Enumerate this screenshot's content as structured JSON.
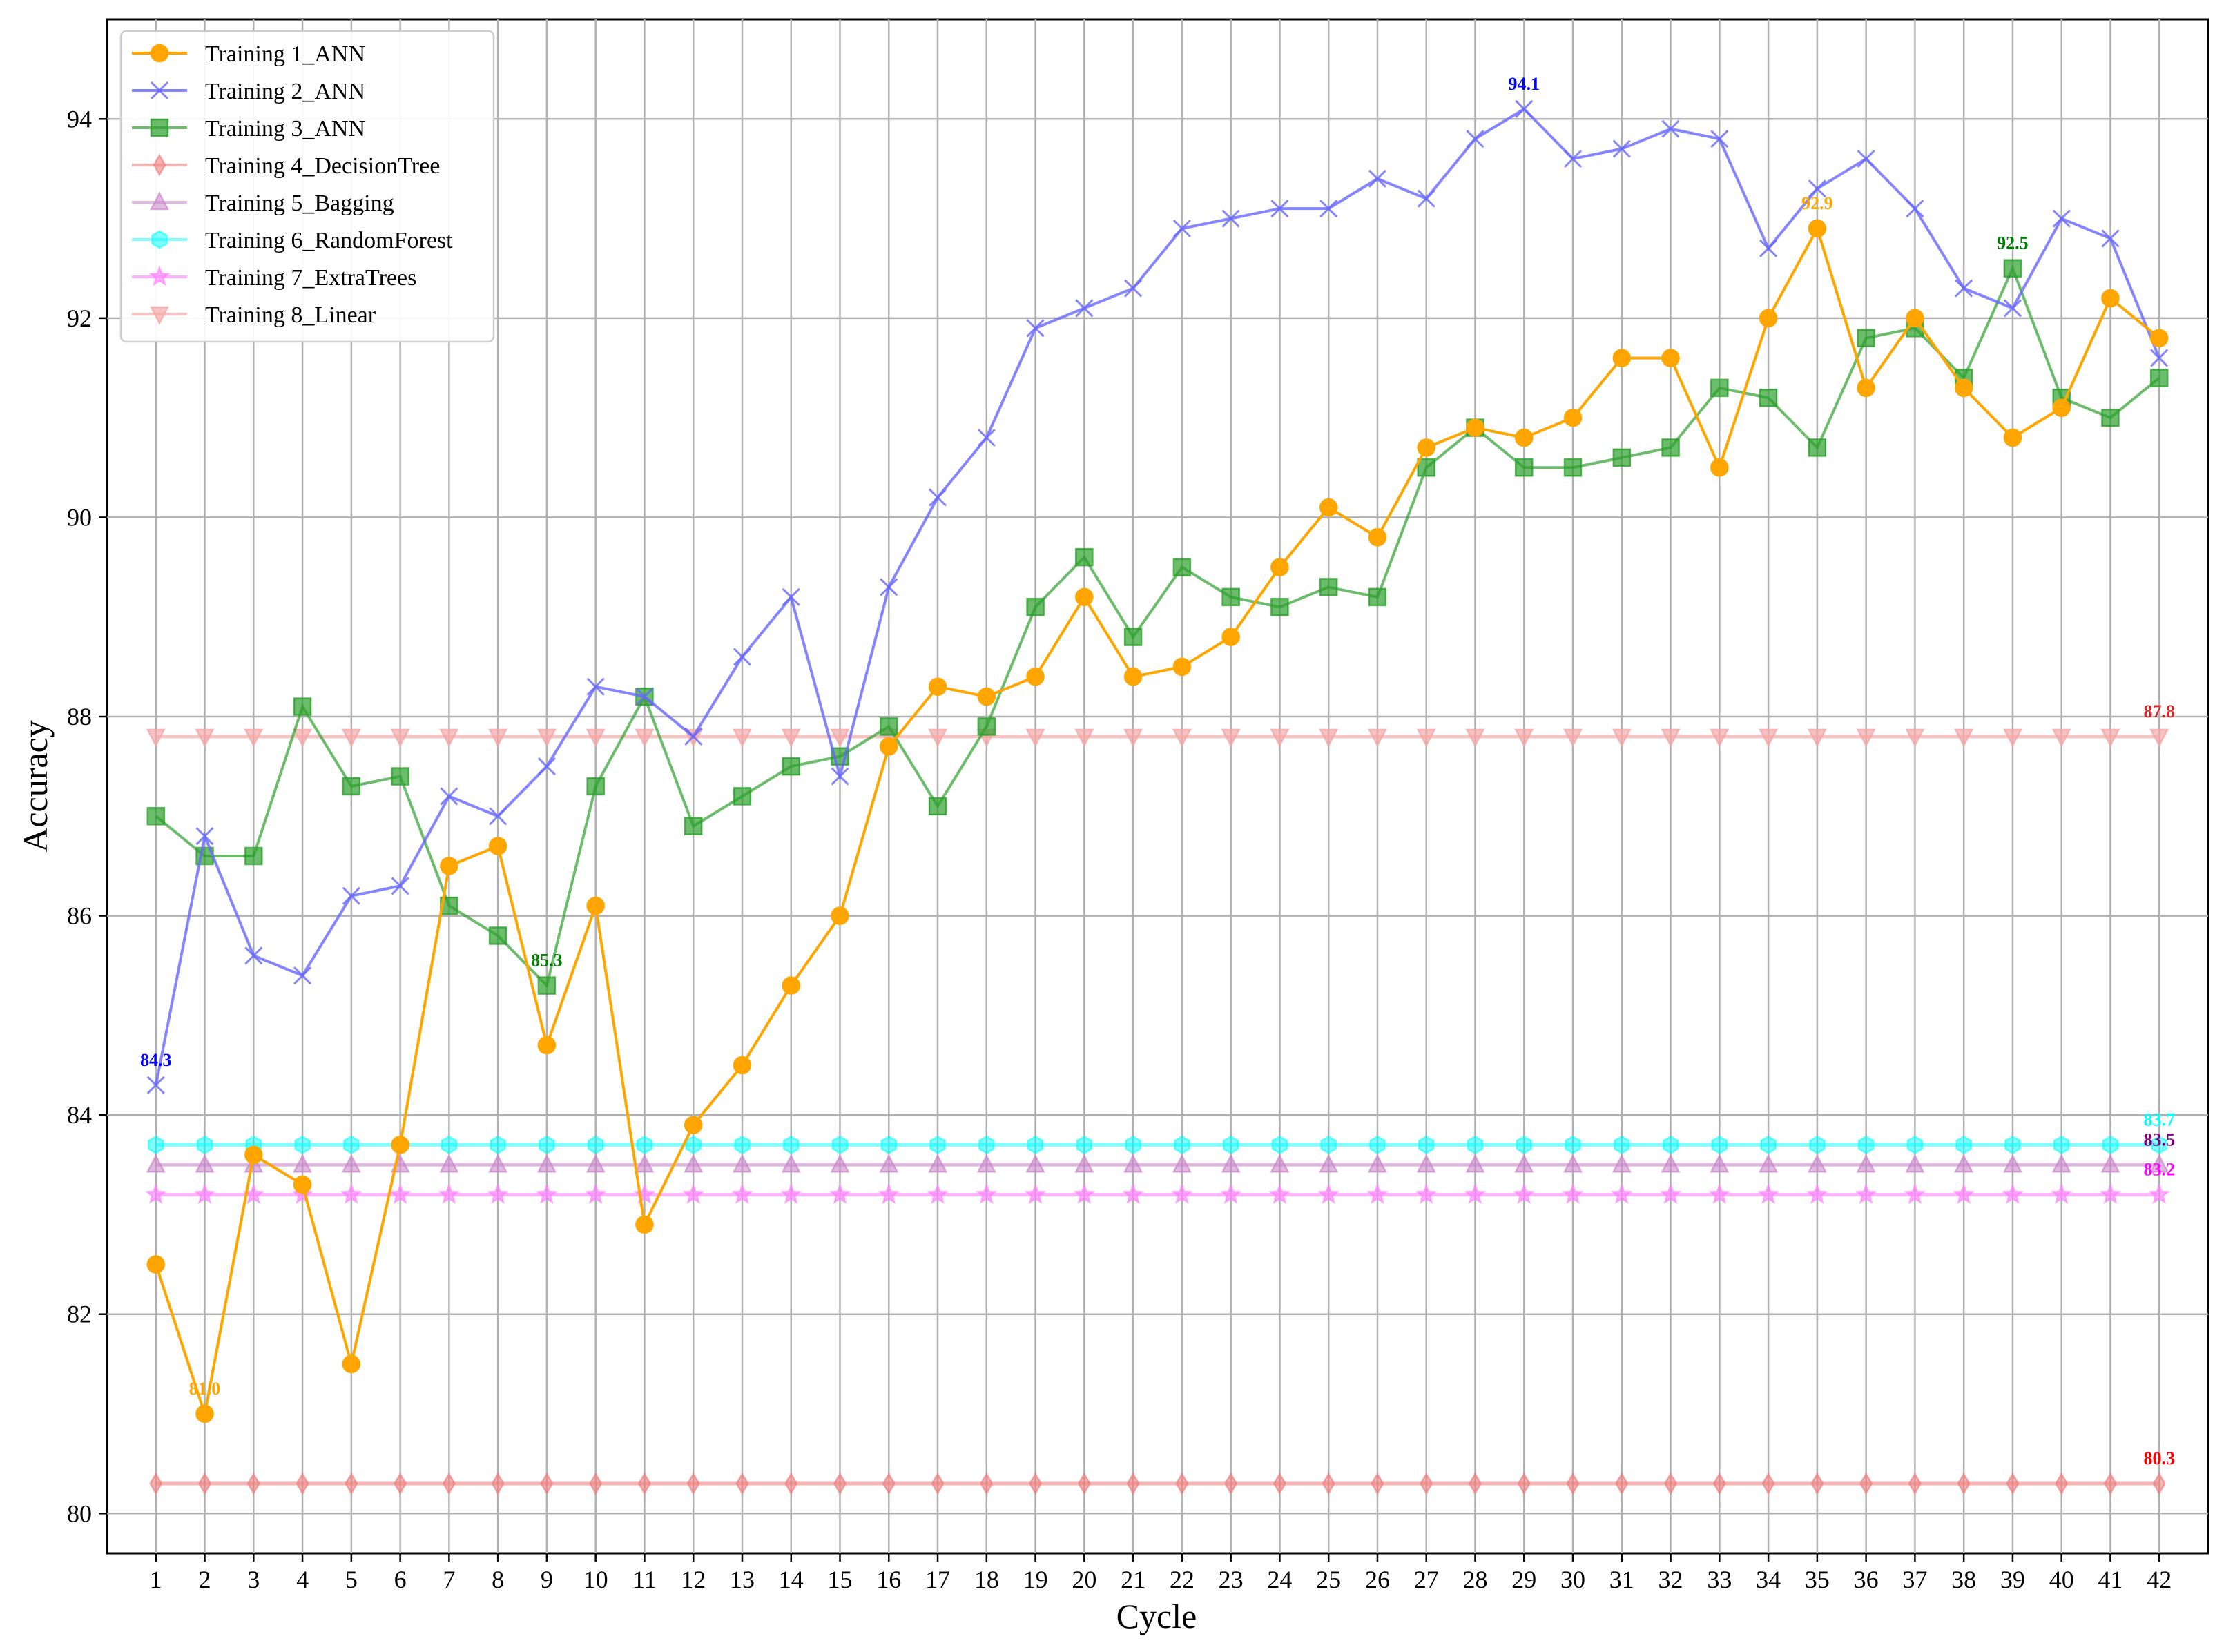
{
  "chart_data": {
    "type": "line",
    "title": "",
    "xlabel": "Cycle",
    "ylabel": "Accuracy",
    "x": [
      1,
      2,
      3,
      4,
      5,
      6,
      7,
      8,
      9,
      10,
      11,
      12,
      13,
      14,
      15,
      16,
      17,
      18,
      19,
      20,
      21,
      22,
      23,
      24,
      25,
      26,
      27,
      28,
      29,
      30,
      31,
      32,
      33,
      34,
      35,
      36,
      37,
      38,
      39,
      40,
      41,
      42
    ],
    "xlim": [
      0,
      43
    ],
    "ylim": [
      79.6,
      95.0
    ],
    "yticks": [
      80,
      82,
      84,
      86,
      88,
      90,
      92,
      94
    ],
    "grid": true,
    "legend_position": "top-left",
    "series": [
      {
        "name": "Training 1_ANN",
        "color": "#ffa500",
        "marker": "circle",
        "alpha": 1.0,
        "values": [
          82.5,
          81.0,
          83.6,
          83.3,
          81.5,
          83.7,
          86.5,
          86.7,
          84.7,
          86.1,
          82.9,
          83.9,
          84.5,
          85.3,
          86.0,
          87.7,
          88.3,
          88.2,
          88.4,
          89.2,
          88.4,
          88.5,
          88.8,
          89.5,
          90.1,
          89.8,
          90.7,
          90.9,
          90.8,
          91.0,
          91.6,
          91.6,
          90.5,
          92.0,
          92.9,
          91.3,
          92.0,
          91.3,
          90.8,
          91.1,
          92.2,
          91.8
        ]
      },
      {
        "name": "Training 2_ANN",
        "color": "#6666ff",
        "marker": "x",
        "alpha": 0.8,
        "values": [
          84.3,
          86.8,
          85.6,
          85.4,
          86.2,
          86.3,
          87.2,
          87.0,
          87.5,
          88.3,
          88.2,
          87.8,
          88.6,
          89.2,
          87.4,
          89.3,
          90.2,
          90.8,
          91.9,
          92.1,
          92.3,
          92.9,
          93.0,
          93.1,
          93.1,
          93.4,
          93.2,
          93.8,
          94.1,
          93.6,
          93.7,
          93.9,
          93.8,
          92.7,
          93.3,
          93.6,
          93.1,
          92.3,
          92.1,
          93.0,
          92.8,
          91.6
        ]
      },
      {
        "name": "Training 3_ANN",
        "color": "#2ca02c",
        "marker": "square",
        "alpha": 0.7,
        "values": [
          87.0,
          86.6,
          86.6,
          88.1,
          87.3,
          87.4,
          86.1,
          85.8,
          85.3,
          87.3,
          88.2,
          86.9,
          87.2,
          87.5,
          87.6,
          87.9,
          87.1,
          87.9,
          89.1,
          89.6,
          88.8,
          89.5,
          89.2,
          89.1,
          89.3,
          89.2,
          90.5,
          90.9,
          90.5,
          90.5,
          90.6,
          90.7,
          91.3,
          91.2,
          90.7,
          91.8,
          91.9,
          91.4,
          92.5,
          91.2,
          91.0,
          91.4
        ]
      },
      {
        "name": "Training 4_DecisionTree",
        "color": "#f08080",
        "marker": "diamond",
        "alpha": 0.6,
        "constant": 80.3
      },
      {
        "name": "Training 5_Bagging",
        "color": "#cc88cc",
        "marker": "triangle-up",
        "alpha": 0.6,
        "constant": 83.5
      },
      {
        "name": "Training 6_RandomForest",
        "color": "#00ffff",
        "marker": "hexagon",
        "alpha": 0.5,
        "constant": 83.7
      },
      {
        "name": "Training 7_ExtraTrees",
        "color": "#ff80ff",
        "marker": "star",
        "alpha": 0.6,
        "constant": 83.2
      },
      {
        "name": "Training 8_Linear",
        "color": "#f4a8a8",
        "marker": "triangle-down",
        "alpha": 0.7,
        "constant": 87.8
      }
    ],
    "annotations": [
      {
        "text": "84.3",
        "x": 1,
        "y": 84.3,
        "color": "#0000ff"
      },
      {
        "text": "81.0",
        "x": 2,
        "y": 81.0,
        "color": "#ffa500"
      },
      {
        "text": "85.3",
        "x": 9,
        "y": 85.3,
        "color": "#008000"
      },
      {
        "text": "94.1",
        "x": 29,
        "y": 94.1,
        "color": "#0000ff"
      },
      {
        "text": "92.9",
        "x": 35,
        "y": 92.9,
        "color": "#ffa500"
      },
      {
        "text": "92.5",
        "x": 39,
        "y": 92.5,
        "color": "#008000"
      },
      {
        "text": "87.8",
        "x": 42,
        "y": 87.8,
        "color": "#d62728"
      },
      {
        "text": "83.7",
        "x": 42,
        "y": 83.7,
        "color": "#00ffff"
      },
      {
        "text": "83.5",
        "x": 42,
        "y": 83.5,
        "color": "#800080"
      },
      {
        "text": "83.2",
        "x": 42,
        "y": 83.2,
        "color": "#ff00ff"
      },
      {
        "text": "80.3",
        "x": 42,
        "y": 80.3,
        "color": "#ff0000"
      }
    ]
  }
}
